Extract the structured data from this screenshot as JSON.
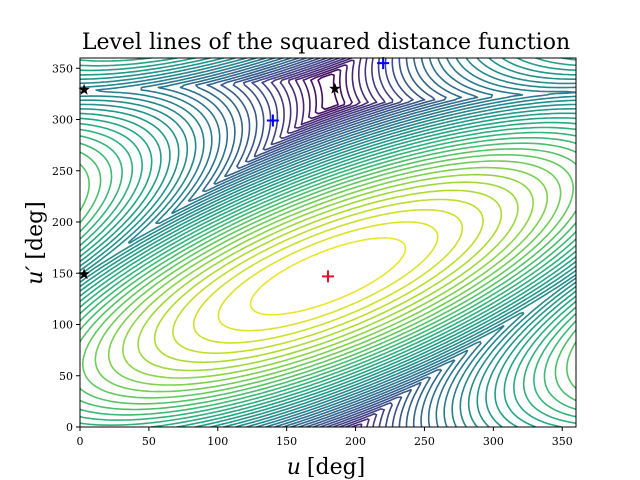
{
  "chart_data": {
    "type": "contour",
    "title": "Level lines of the squared distance function",
    "xlabel_var": "u",
    "xlabel_unit": "[deg]",
    "ylabel_var": "u′",
    "ylabel_unit": "[deg]",
    "xlim": [
      0,
      360
    ],
    "ylim": [
      0,
      360
    ],
    "xticks": [
      0,
      50,
      100,
      150,
      200,
      250,
      300,
      350
    ],
    "yticks": [
      0,
      50,
      100,
      150,
      200,
      250,
      300,
      350
    ],
    "grid": false,
    "colormap": "viridis",
    "contour_center": {
      "x": 180,
      "y": 147
    },
    "contour_levels": 40,
    "markers": [
      {
        "name": "red-plus",
        "shape": "plus",
        "color": "#e8112d",
        "x": 180,
        "y": 147
      },
      {
        "name": "blue-plus",
        "shape": "plus",
        "color": "#0000ff",
        "x": 140,
        "y": 299
      },
      {
        "name": "blue-plus",
        "shape": "plus",
        "color": "#0000ff",
        "x": 220,
        "y": 355
      },
      {
        "name": "black-star",
        "shape": "star",
        "color": "#000000",
        "x": 185,
        "y": 330
      },
      {
        "name": "black-star",
        "shape": "star",
        "color": "#000000",
        "x": 3,
        "y": 329
      },
      {
        "name": "black-star",
        "shape": "star",
        "color": "#000000",
        "x": 3,
        "y": 149
      }
    ]
  }
}
